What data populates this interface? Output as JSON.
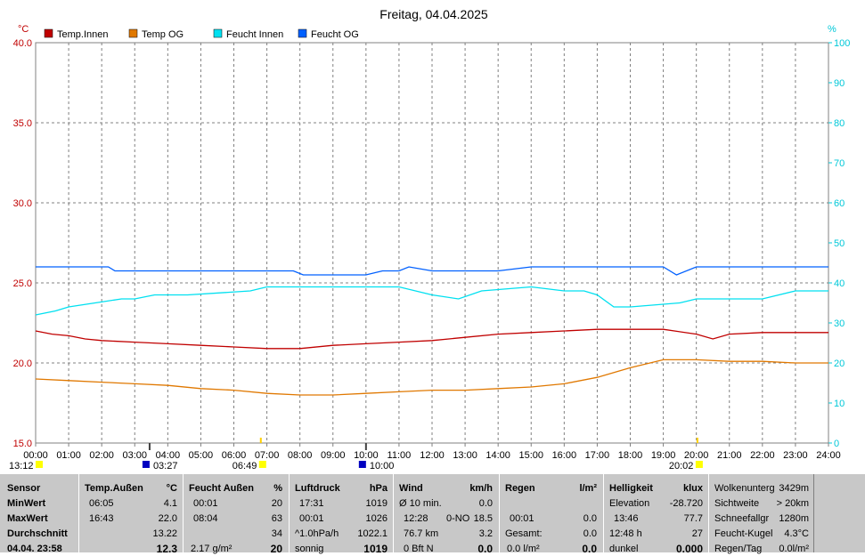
{
  "chart_data": {
    "type": "line",
    "title": "Freitag, 04.04.2025",
    "left_unit": "°C",
    "right_unit": "%",
    "left_ylim": [
      15,
      40
    ],
    "right_ylim": [
      0,
      100
    ],
    "left_ticks": [
      "15.0",
      "20.0",
      "25.0",
      "30.0",
      "35.0",
      "40.0"
    ],
    "right_ticks": [
      "0",
      "10",
      "20",
      "30",
      "40",
      "50",
      "60",
      "70",
      "80",
      "90",
      "100"
    ],
    "x_ticks": [
      "00:00",
      "01:00",
      "02:00",
      "03:00",
      "04:00",
      "05:00",
      "06:00",
      "07:00",
      "08:00",
      "09:00",
      "10:00",
      "11:00",
      "12:00",
      "13:00",
      "14:00",
      "15:00",
      "16:00",
      "17:00",
      "18:00",
      "19:00",
      "20:00",
      "21:00",
      "22:00",
      "23:00",
      "24:00"
    ],
    "grid": true,
    "legend_position": "top-left",
    "series": [
      {
        "name": "Temp.Innen",
        "axis": "left",
        "color": "#c00000",
        "x": [
          0,
          0.5,
          1,
          1.5,
          2,
          3,
          4,
          5,
          6,
          7,
          8,
          9,
          10,
          11,
          12,
          13,
          14,
          15,
          16,
          17,
          18,
          19,
          20,
          20.5,
          21,
          22,
          23,
          24
        ],
        "y": [
          22.0,
          21.8,
          21.7,
          21.5,
          21.4,
          21.3,
          21.2,
          21.1,
          21.0,
          20.9,
          20.9,
          21.1,
          21.2,
          21.3,
          21.4,
          21.6,
          21.8,
          21.9,
          22.0,
          22.1,
          22.1,
          22.1,
          21.8,
          21.5,
          21.8,
          21.9,
          21.9,
          21.9
        ]
      },
      {
        "name": "Temp OG",
        "axis": "left",
        "color": "#e07800",
        "x": [
          0,
          1,
          2,
          3,
          4,
          5,
          6,
          7,
          8,
          9,
          10,
          11,
          12,
          13,
          14,
          15,
          16,
          17,
          18,
          19,
          20,
          21,
          22,
          23,
          24
        ],
        "y": [
          19.0,
          18.9,
          18.8,
          18.7,
          18.6,
          18.4,
          18.3,
          18.1,
          18.0,
          18.0,
          18.1,
          18.2,
          18.3,
          18.3,
          18.4,
          18.5,
          18.7,
          19.1,
          19.7,
          20.2,
          20.2,
          20.1,
          20.1,
          20.0,
          20.0
        ]
      },
      {
        "name": "Feucht Innen",
        "axis": "right",
        "color": "#00e0f0",
        "x": [
          0,
          0.6,
          1,
          1.8,
          2.6,
          3,
          3.6,
          4.6,
          6.5,
          7,
          8,
          9,
          10,
          11,
          12,
          12.8,
          13.5,
          15,
          16,
          16.6,
          17,
          17.5,
          18,
          19.5,
          20,
          21,
          22,
          23,
          24
        ],
        "y": [
          32,
          33,
          34,
          35,
          36,
          36,
          37,
          37,
          38,
          39,
          39,
          39,
          39,
          39,
          37,
          36,
          38,
          39,
          38,
          38,
          37,
          34,
          34,
          35,
          36,
          36,
          36,
          38,
          38
        ]
      },
      {
        "name": "Feucht OG",
        "axis": "right",
        "color": "#0060ff",
        "x": [
          0,
          2.2,
          2.4,
          4,
          5,
          7,
          7.8,
          8.1,
          9,
          10,
          10.5,
          11,
          11.3,
          12,
          14,
          15,
          16,
          17,
          18,
          19,
          19.4,
          20,
          21,
          22,
          23,
          24
        ],
        "y": [
          44,
          44,
          43,
          43,
          43,
          43,
          43,
          42,
          42,
          42,
          43,
          43,
          44,
          43,
          43,
          44,
          44,
          44,
          44,
          44,
          42,
          44,
          44,
          44,
          44,
          44
        ]
      }
    ],
    "markers": [
      {
        "label": "13:12",
        "time": "13:12",
        "color": "#ffff00"
      },
      {
        "label": "03:27",
        "time": "03:27",
        "color": "#0000c0"
      },
      {
        "label": "06:49",
        "time": "06:49",
        "color": "#ffff00"
      },
      {
        "label": "10:00",
        "time": "10:00",
        "color": "#0000c0"
      },
      {
        "label": "20:02",
        "time": "20:02",
        "color": "#ffff00"
      }
    ]
  },
  "panel": {
    "sensor": {
      "title": "Sensor",
      "minwert": "MinWert",
      "maxwert": "MaxWert",
      "durchschnitt": "Durchschnitt",
      "current": "04.04. 23:58"
    },
    "temp": {
      "title": "Temp.Außen",
      "unit": "°C",
      "min_time": "06:05",
      "min_val": "4.1",
      "max_time": "16:43",
      "max_val": "22.0",
      "avg": "13.22",
      "current": "12.3"
    },
    "feucht": {
      "title": "Feucht Außen",
      "unit": "%",
      "min_time": "00:01",
      "min_val": "20",
      "max_time": "08:04",
      "max_val": "63",
      "avg": "34",
      "abs": "2.17 g/m²",
      "current": "20"
    },
    "druck": {
      "title": "Luftdruck",
      "unit": "hPa",
      "min_time": "17:31",
      "min_val": "1019",
      "max_time": "00:01",
      "max_val": "1026",
      "trend": "^1.0hPa/h",
      "avg": "1022.1",
      "weather": "sonnig",
      "current": "1019"
    },
    "wind": {
      "title": "Wind",
      "unit": "km/h",
      "avg_label": "Ø 10 min.",
      "avg_val": "0.0",
      "max_time": "12:28",
      "max_dir": "0-NO",
      "max_val": "18.5",
      "dist": "76.7 km",
      "dist_val": "3.2",
      "bft": "0 Bft N",
      "current": "0.0"
    },
    "regen": {
      "title": "Regen",
      "unit": "l/m²",
      "time1": "00:01",
      "val1": "0.0",
      "gesamt_label": "Gesamt:",
      "gesamt_val": "0.0",
      "current_text": "0.0 l/m²",
      "current": "0.0"
    },
    "hell": {
      "title": "Helligkeit",
      "unit": "klux",
      "elev_label": "Elevation",
      "elev_val": "-28.720",
      "max_time": "13:46",
      "max_val": "77.7",
      "dur": "12:48 h",
      "dur_val": "27",
      "state": "dunkel",
      "current": "0.000"
    },
    "extra": {
      "wolken_label": "Wolkenunterg",
      "wolken_val": "3429m",
      "sicht_label": "Sichtweite",
      "sicht_val": "> 20km",
      "schnee_label": "Schneefallgr",
      "schnee_val": "1280m",
      "kugel_label": "Feucht-Kugel",
      "kugel_val": "4.3°C",
      "regen_label": "Regen/Tag",
      "regen_val": "0.0l/m²"
    }
  }
}
